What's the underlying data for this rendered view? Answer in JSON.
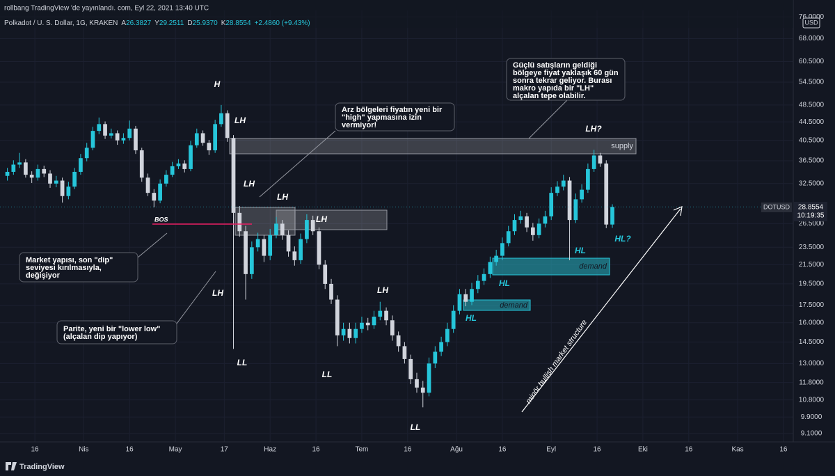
{
  "header": {
    "published": "rollbang TradingView 'de yayınlandı. com, Eyl 22, 2021 13:40 UTC",
    "symbol": "Polkadot / U. S. Dollar, 1G, KRAKEN",
    "ohlc": [
      {
        "key": "A",
        "value": "26.3827"
      },
      {
        "key": "Y",
        "value": "29.2511"
      },
      {
        "key": "D",
        "value": "25.9370"
      },
      {
        "key": "K",
        "value": "28.8554"
      }
    ],
    "change": "+2.4860 (+9.43%)"
  },
  "price_label": {
    "symbol": "DOTUSD",
    "price": "28.8554",
    "countdown": "10:19:35"
  },
  "currency": "USD",
  "brand": "TradingView",
  "chart_data": {
    "type": "candlestick",
    "log_scale": true,
    "grid": true,
    "up_color": "#26c6da",
    "down_color": "#d1d4dc",
    "ylim": [
      8.72,
      78.5
    ],
    "yticks": [
      {
        "value": 76,
        "label": "76.0000"
      },
      {
        "value": 68,
        "label": "68.0000"
      },
      {
        "value": 60.5,
        "label": "60.5000"
      },
      {
        "value": 54.5,
        "label": "54.5000"
      },
      {
        "value": 48.5,
        "label": "48.5000"
      },
      {
        "value": 44.5,
        "label": "44.5000"
      },
      {
        "value": 40.5,
        "label": "40.5000"
      },
      {
        "value": 36.5,
        "label": "36.5000"
      },
      {
        "value": 32.5,
        "label": "32.5000"
      },
      {
        "value": 26.5,
        "label": "26.5000"
      },
      {
        "value": 23.5,
        "label": "23.5000"
      },
      {
        "value": 21.5,
        "label": "21.5000"
      },
      {
        "value": 19.5,
        "label": "19.5000"
      },
      {
        "value": 17.5,
        "label": "17.5000"
      },
      {
        "value": 16,
        "label": "16.0000"
      },
      {
        "value": 14.5,
        "label": "14.5000"
      },
      {
        "value": 13,
        "label": "13.0000"
      },
      {
        "value": 11.8,
        "label": "11.8000"
      },
      {
        "value": 10.8,
        "label": "10.8000"
      },
      {
        "value": 9.9,
        "label": "9.9000"
      },
      {
        "value": 9.1,
        "label": "9.1000"
      }
    ],
    "xlim": [
      63.6,
      323.2
    ],
    "xticks": [
      {
        "value": 75,
        "label": "16"
      },
      {
        "value": 91,
        "label": "Nis"
      },
      {
        "value": 106,
        "label": "16"
      },
      {
        "value": 121,
        "label": "May"
      },
      {
        "value": 137,
        "label": "17"
      },
      {
        "value": 152,
        "label": "Haz"
      },
      {
        "value": 167,
        "label": "16"
      },
      {
        "value": 182,
        "label": "Tem"
      },
      {
        "value": 197,
        "label": "16"
      },
      {
        "value": 213,
        "label": "Ağu"
      },
      {
        "value": 228,
        "label": "16"
      },
      {
        "value": 244,
        "label": "Eyl"
      },
      {
        "value": 259,
        "label": "16"
      },
      {
        "value": 274,
        "label": "Eki"
      },
      {
        "value": 289,
        "label": "16"
      },
      {
        "value": 305,
        "label": "Kas"
      },
      {
        "value": 320,
        "label": "16"
      }
    ],
    "x": [
      66,
      68,
      70,
      72,
      74,
      76,
      78,
      80,
      82,
      84,
      86,
      88,
      90,
      92,
      94,
      96,
      98,
      100,
      102,
      104,
      106,
      108,
      110,
      112,
      114,
      116,
      118,
      120,
      122,
      124,
      126,
      128,
      130,
      132,
      134,
      136,
      138,
      140,
      142,
      144,
      146,
      148,
      150,
      152,
      154,
      156,
      158,
      160,
      162,
      164,
      166,
      168,
      170,
      172,
      174,
      176,
      178,
      180,
      182,
      184,
      186,
      188,
      190,
      192,
      194,
      196,
      198,
      200,
      202,
      204,
      206,
      208,
      210,
      212,
      214,
      216,
      218,
      220,
      222,
      224,
      226,
      228,
      230,
      232,
      234,
      236,
      238,
      240,
      242,
      244,
      246,
      248,
      250,
      252,
      254,
      256,
      258,
      260,
      262,
      264
    ],
    "open": [
      33.8,
      34.5,
      35.8,
      36.2,
      34.0,
      33.5,
      35.0,
      34.2,
      32.5,
      33.0,
      30.5,
      32.0,
      34.5,
      37.0,
      39.0,
      42.5,
      44.0,
      41.5,
      42.0,
      40.5,
      41.0,
      43.0,
      38.5,
      33.5,
      31.0,
      29.8,
      32.5,
      34.0,
      35.5,
      36.0,
      35.0,
      39.5,
      42.0,
      40.0,
      38.5,
      44.0,
      46.5,
      41.0,
      28.0,
      25.5,
      20.5,
      23.5,
      24.5,
      22.5,
      25.0,
      26.5,
      25.0,
      23.0,
      22.0,
      24.5,
      27.0,
      25.5,
      21.5,
      19.5,
      18.0,
      15.0,
      15.5,
      14.8,
      15.5,
      16.0,
      15.8,
      16.5,
      17.0,
      16.2,
      15.0,
      14.2,
      13.3,
      12.0,
      11.5,
      11.2,
      13.0,
      13.8,
      14.5,
      15.5,
      17.0,
      18.5,
      17.8,
      19.0,
      19.8,
      20.5,
      21.8,
      22.5,
      24.0,
      25.5,
      27.0,
      27.5,
      26.0,
      25.0,
      26.5,
      27.5,
      31.0,
      32.0,
      33.0,
      27.0,
      30.0,
      31.5,
      35.0,
      37.5,
      36.0,
      26.3827
    ],
    "high": [
      35.2,
      36.6,
      38.0,
      36.8,
      34.6,
      35.8,
      35.6,
      34.8,
      33.8,
      33.5,
      32.8,
      35.2,
      37.8,
      40.0,
      43.4,
      45.5,
      44.6,
      43.0,
      42.6,
      42.0,
      44.8,
      43.6,
      39.0,
      34.2,
      31.6,
      33.2,
      34.8,
      36.3,
      36.8,
      36.6,
      40.4,
      43.0,
      42.6,
      40.6,
      45.0,
      48.5,
      47.2,
      41.6,
      29.0,
      26.2,
      24.2,
      25.3,
      25.0,
      25.8,
      27.4,
      27.0,
      25.6,
      23.6,
      25.2,
      27.8,
      27.6,
      26.0,
      22.0,
      20.0,
      18.4,
      16.0,
      16.0,
      16.0,
      16.5,
      16.4,
      17.0,
      17.8,
      17.3,
      16.6,
      15.3,
      14.5,
      13.6,
      12.4,
      11.9,
      13.4,
      14.2,
      14.9,
      16.0,
      17.5,
      19.0,
      19.0,
      19.6,
      20.4,
      21.1,
      22.4,
      23.2,
      24.7,
      26.2,
      27.8,
      28.3,
      28.0,
      26.6,
      27.2,
      28.3,
      31.9,
      32.9,
      34.0,
      33.6,
      30.9,
      32.4,
      36.0,
      38.6,
      38.0,
      36.6,
      29.2511
    ],
    "low": [
      33.0,
      34.0,
      35.2,
      33.5,
      32.6,
      33.0,
      33.6,
      31.8,
      31.9,
      29.5,
      30.0,
      31.6,
      34.0,
      36.4,
      38.5,
      41.8,
      40.8,
      40.9,
      39.6,
      39.8,
      40.5,
      37.8,
      32.8,
      30.5,
      28.8,
      29.4,
      32.0,
      33.6,
      35.0,
      34.4,
      34.6,
      39.0,
      39.4,
      37.6,
      38.0,
      43.4,
      40.2,
      14.0,
      24.8,
      18.0,
      20.0,
      23.0,
      21.8,
      22.0,
      24.6,
      24.4,
      22.4,
      21.4,
      21.6,
      24.0,
      25.0,
      21.0,
      19.0,
      17.6,
      14.2,
      14.6,
      14.4,
      14.4,
      15.2,
      15.4,
      15.5,
      16.2,
      15.8,
      14.6,
      13.8,
      13.0,
      11.7,
      11.2,
      10.4,
      11.0,
      12.7,
      13.5,
      14.2,
      15.2,
      16.7,
      17.4,
      17.5,
      18.6,
      19.4,
      20.1,
      21.4,
      22.0,
      23.6,
      25.0,
      26.5,
      25.4,
      24.3,
      24.6,
      26.0,
      27.0,
      30.5,
      31.4,
      22.0,
      26.6,
      29.5,
      31.0,
      34.5,
      35.4,
      25.9,
      25.937
    ],
    "close": [
      34.5,
      35.8,
      36.2,
      34.0,
      33.5,
      35.0,
      34.2,
      32.5,
      33.0,
      30.5,
      32.0,
      34.5,
      37.0,
      39.0,
      42.5,
      44.0,
      41.5,
      42.0,
      40.5,
      41.0,
      43.0,
      38.5,
      33.5,
      31.0,
      29.8,
      32.5,
      34.0,
      35.5,
      36.0,
      35.0,
      39.5,
      42.0,
      40.0,
      38.5,
      44.0,
      46.5,
      41.0,
      28.0,
      25.5,
      20.5,
      23.5,
      24.5,
      22.5,
      25.0,
      26.5,
      25.0,
      23.0,
      22.0,
      24.5,
      27.0,
      25.5,
      21.5,
      19.5,
      18.0,
      15.0,
      15.5,
      14.8,
      15.5,
      16.0,
      15.8,
      16.5,
      17.0,
      16.2,
      15.0,
      14.2,
      13.3,
      12.0,
      11.5,
      11.2,
      13.0,
      13.8,
      14.5,
      15.5,
      17.0,
      18.5,
      17.8,
      19.0,
      19.8,
      20.5,
      21.8,
      22.5,
      24.0,
      25.5,
      27.0,
      27.5,
      26.0,
      25.0,
      26.5,
      27.5,
      31.0,
      32.0,
      33.0,
      27.0,
      30.0,
      31.5,
      35.0,
      37.5,
      36.0,
      26.3827,
      28.8554
    ],
    "annotations": {
      "labels": [
        "H",
        "LH",
        "LH",
        "LH",
        "LH",
        "LL",
        "LL",
        "LL",
        "LH",
        "LL",
        "HL",
        "HL",
        "HL",
        "HL?",
        "LH?",
        "BOS"
      ],
      "zones": [
        "supply",
        "demand",
        "demand"
      ],
      "box_label": "LH",
      "notes": [
        [
          "Güçlü satışların geldiği",
          "bölgeye fiyat yaklaşık 60 gün",
          "sonra tekrar geliyor. Burası",
          "makro yapıda bir \"LH\"",
          "alçalan tepe olabilir."
        ],
        [
          "Arz bölgeleri fiyatın yeni bir",
          "\"high\" yapmasına izin",
          "vermiyor!"
        ],
        [
          "Market yapısı, son \"dip\"",
          "seviyesi kırılmasıyla,",
          "değişiyor"
        ],
        [
          "Parite, yeni bir \"lower low\"",
          "(alçalan dip yapıyor)"
        ]
      ],
      "trend": "minör bullish market structure"
    }
  }
}
